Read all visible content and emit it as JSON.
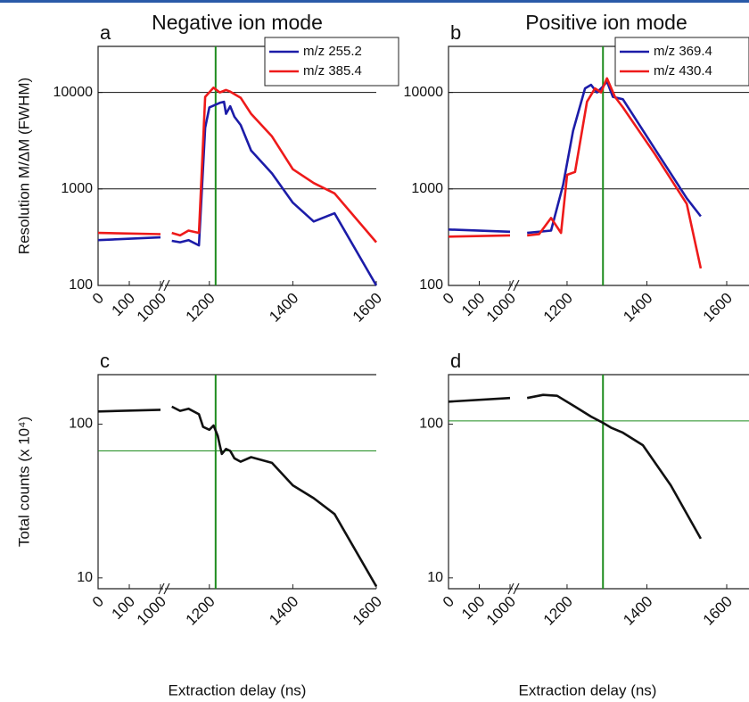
{
  "chart_data": [
    {
      "type": "line",
      "panel_label": "a",
      "title": "Negative ion mode",
      "ylabel": "Resolution M/ΔM (FWHM)",
      "log_y": true,
      "ylim": [
        100,
        30000
      ],
      "yticks": [
        100,
        1000,
        10000
      ],
      "grid": true,
      "legend": "upper right",
      "xsegments": [
        {
          "xlim": [
            0,
            1000
          ],
          "xticks": [
            0,
            100,
            1000
          ]
        },
        {
          "xlim": [
            1100,
            1600
          ],
          "xticks": [
            1200,
            1400,
            1600
          ]
        }
      ],
      "vline": 1215,
      "marker_color": "#1e8c1e",
      "series": [
        {
          "name": "m/z 255.2",
          "color": "#1c1ca8",
          "x": [
            0,
            1000,
            1110,
            1130,
            1150,
            1175,
            1190,
            1200,
            1225,
            1235,
            1240,
            1250,
            1260,
            1275,
            1300,
            1350,
            1400,
            1450,
            1500,
            1600
          ],
          "values": [
            295,
            315,
            290,
            280,
            295,
            260,
            4300,
            7000,
            7800,
            8000,
            6000,
            7200,
            5600,
            4600,
            2500,
            1450,
            720,
            460,
            560,
            100
          ]
        },
        {
          "name": "m/z 385.4",
          "color": "#ee1a1a",
          "x": [
            0,
            1000,
            1110,
            1130,
            1150,
            1175,
            1190,
            1210,
            1225,
            1240,
            1250,
            1275,
            1300,
            1350,
            1400,
            1450,
            1500,
            1600
          ],
          "values": [
            350,
            340,
            350,
            330,
            370,
            350,
            9000,
            11200,
            10000,
            10600,
            10200,
            8800,
            6000,
            3500,
            1600,
            1150,
            900,
            280
          ]
        }
      ]
    },
    {
      "type": "line",
      "panel_label": "b",
      "title": "Positive ion mode",
      "log_y": true,
      "ylim": [
        100,
        30000
      ],
      "yticks": [
        100,
        1000,
        10000
      ],
      "grid": true,
      "legend": "upper right",
      "xsegments": [
        {
          "xlim": [
            0,
            1000
          ],
          "xticks": [
            0,
            100,
            1000
          ]
        },
        {
          "xlim": [
            1075,
            1600
          ],
          "xticks": [
            1200,
            1400,
            1600
          ]
        }
      ],
      "vline": 1290,
      "marker_color": "#1e8c1e",
      "series": [
        {
          "name": "m/z 369.4",
          "color": "#1c1ca8",
          "x": [
            0,
            1000,
            1100,
            1130,
            1160,
            1190,
            1215,
            1245,
            1260,
            1275,
            1290,
            1300,
            1315,
            1340,
            1420,
            1500,
            1535
          ],
          "values": [
            380,
            360,
            350,
            360,
            370,
            1100,
            4000,
            11000,
            12000,
            10000,
            11500,
            13000,
            9000,
            8500,
            2600,
            800,
            520
          ]
        },
        {
          "name": "m/z 430.4",
          "color": "#ee1a1a",
          "x": [
            0,
            1000,
            1100,
            1130,
            1160,
            1185,
            1200,
            1220,
            1250,
            1270,
            1285,
            1300,
            1320,
            1340,
            1420,
            1500,
            1535
          ],
          "values": [
            320,
            330,
            330,
            340,
            500,
            350,
            1400,
            1500,
            8000,
            11000,
            10000,
            14000,
            9000,
            7000,
            2300,
            700,
            150
          ]
        }
      ]
    },
    {
      "type": "line",
      "panel_label": "c",
      "ylabel": "Total counts (x 10⁴)",
      "xlabel": "Extraction delay (ns)",
      "log_y": true,
      "ylim": [
        8.5,
        210
      ],
      "yticks": [
        10,
        100
      ],
      "grid": false,
      "xsegments": [
        {
          "xlim": [
            0,
            1000
          ],
          "xticks": [
            0,
            100,
            1000
          ]
        },
        {
          "xlim": [
            1100,
            1600
          ],
          "xticks": [
            1200,
            1400,
            1600
          ]
        }
      ],
      "vline": 1215,
      "hline": 67,
      "marker_color": "#1e8c1e",
      "series": [
        {
          "color": "#111111",
          "x": [
            0,
            1000,
            1110,
            1130,
            1150,
            1175,
            1185,
            1200,
            1210,
            1220,
            1225,
            1230,
            1240,
            1250,
            1260,
            1275,
            1300,
            1350,
            1400,
            1450,
            1500,
            1600
          ],
          "values": [
            121,
            124,
            130,
            122,
            126,
            116,
            96,
            92,
            98,
            84,
            73,
            64,
            69,
            67,
            60,
            57,
            61,
            56,
            40,
            33,
            26,
            8.8
          ]
        }
      ]
    },
    {
      "type": "line",
      "panel_label": "d",
      "xlabel": "Extraction delay (ns)",
      "log_y": true,
      "ylim": [
        8.5,
        210
      ],
      "yticks": [
        10,
        100
      ],
      "grid": false,
      "xsegments": [
        {
          "xlim": [
            0,
            1000
          ],
          "xticks": [
            0,
            100,
            1000
          ]
        },
        {
          "xlim": [
            1075,
            1600
          ],
          "xticks": [
            1200,
            1400,
            1600
          ]
        }
      ],
      "vline": 1290,
      "hline": 105,
      "marker_color": "#1e8c1e",
      "series": [
        {
          "color": "#111111",
          "x": [
            0,
            1000,
            1100,
            1140,
            1175,
            1220,
            1260,
            1290,
            1310,
            1340,
            1390,
            1460,
            1535
          ],
          "values": [
            140,
            148,
            148,
            155,
            153,
            130,
            112,
            102,
            95,
            88,
            73,
            40,
            18
          ]
        }
      ]
    }
  ]
}
